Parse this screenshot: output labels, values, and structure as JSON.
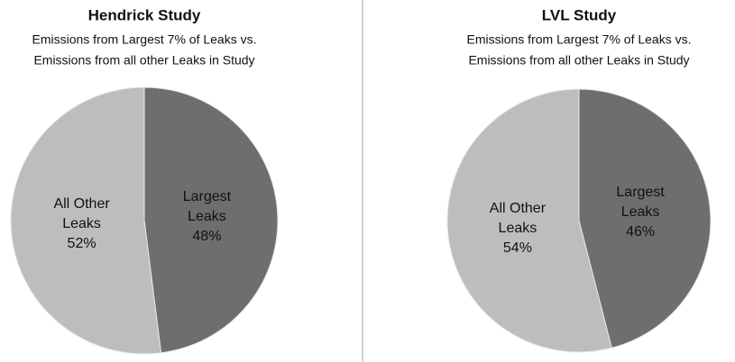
{
  "chart_data": [
    {
      "type": "pie",
      "title": "Hendrick Study",
      "subtitle": [
        "Emissions from Largest 7% of Leaks vs.",
        "Emissions from all other Leaks in Study"
      ],
      "categories": [
        "Largest Leaks",
        "All Other Leaks"
      ],
      "values": [
        48,
        52
      ],
      "value_labels": [
        "48%",
        "52%"
      ],
      "colors": [
        "#6e6e6e",
        "#bdbdbd"
      ]
    },
    {
      "type": "pie",
      "title": "LVL Study",
      "subtitle": [
        "Emissions from Largest 7% of Leaks vs.",
        "Emissions from all other Leaks in Study"
      ],
      "categories": [
        "Largest Leaks",
        "All Other Leaks"
      ],
      "values": [
        46,
        54
      ],
      "value_labels": [
        "46%",
        "54%"
      ],
      "colors": [
        "#6e6e6e",
        "#bdbdbd"
      ]
    }
  ]
}
